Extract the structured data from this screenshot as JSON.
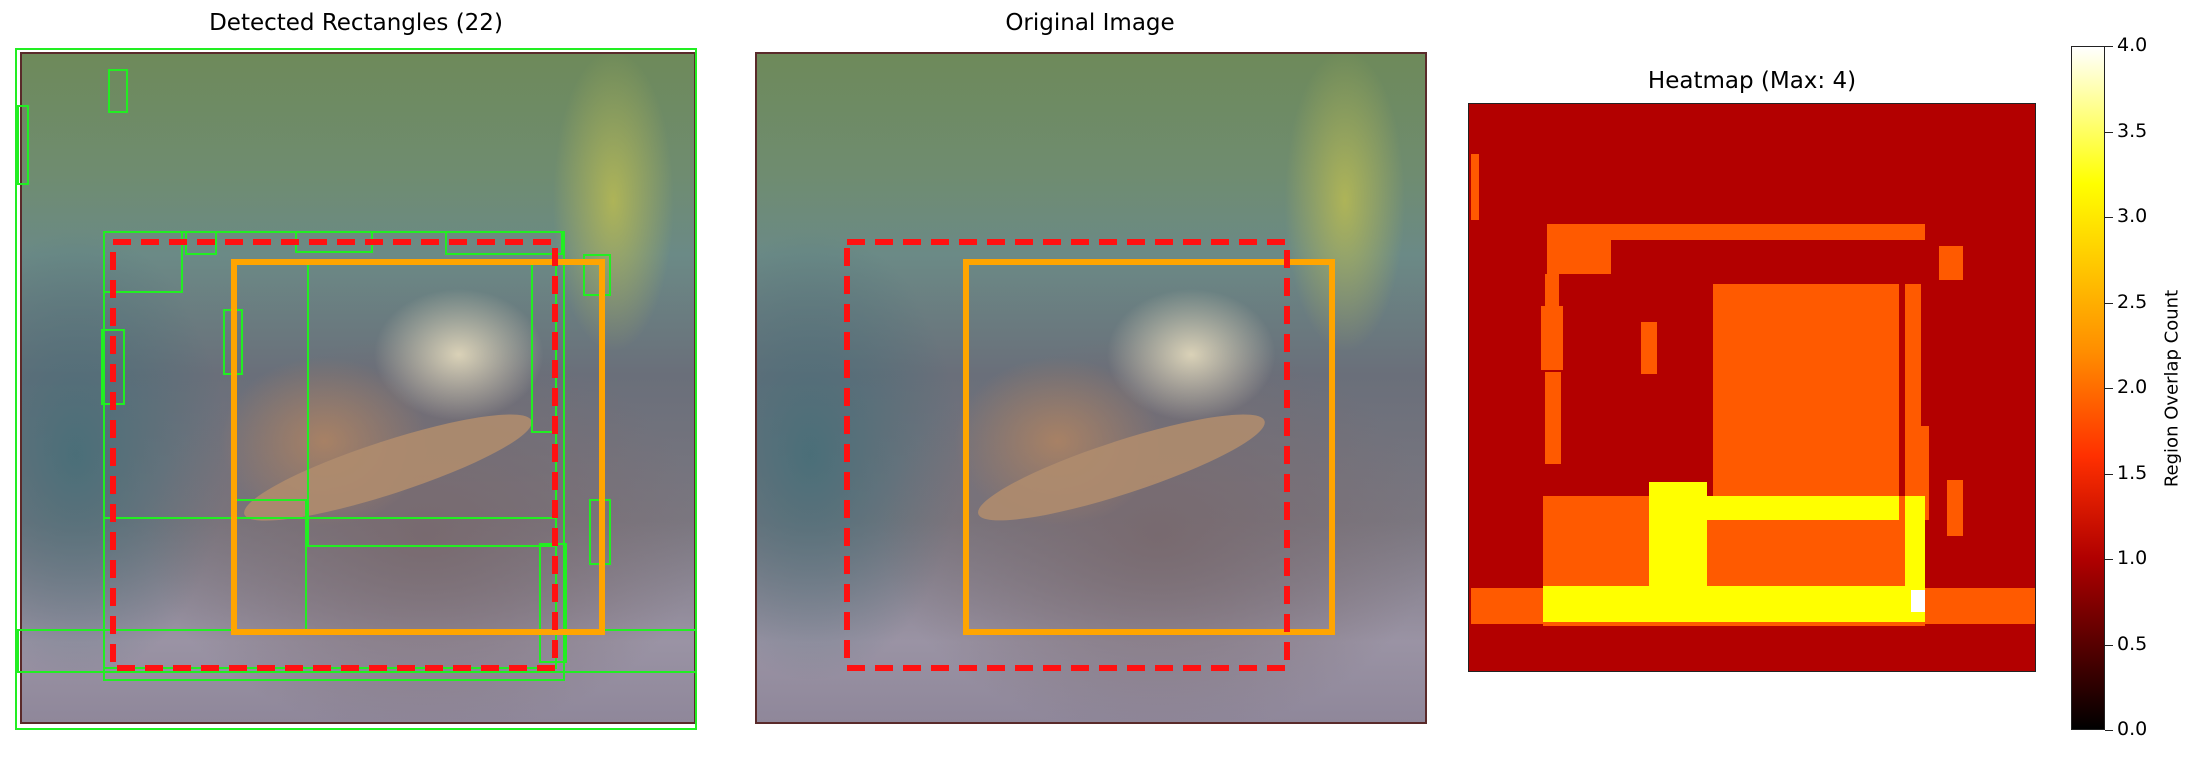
{
  "panels": {
    "detected_title": "Detected Rectangles (22)",
    "original_title": "Original Image",
    "heatmap_title": "Heatmap (Max: 4)"
  },
  "colorbar": {
    "label": "Region Overlap Count",
    "ticks": [
      "0.0",
      "0.5",
      "1.0",
      "1.5",
      "2.0",
      "2.5",
      "3.0",
      "3.5",
      "4.0"
    ]
  },
  "colors": {
    "detected_box": "#22ee22",
    "dashed_box": "#ff1111",
    "solid_box": "#ffa500",
    "heat_level_1": "#b30000",
    "heat_level_2": "#ff5a00",
    "heat_level_3": "#ffff00",
    "heat_level_4": "#ffffff"
  },
  "chart_data": {
    "type": "heatmap",
    "detected_count": 22,
    "max_overlap": 4,
    "colorbar_range": [
      0,
      4
    ]
  }
}
